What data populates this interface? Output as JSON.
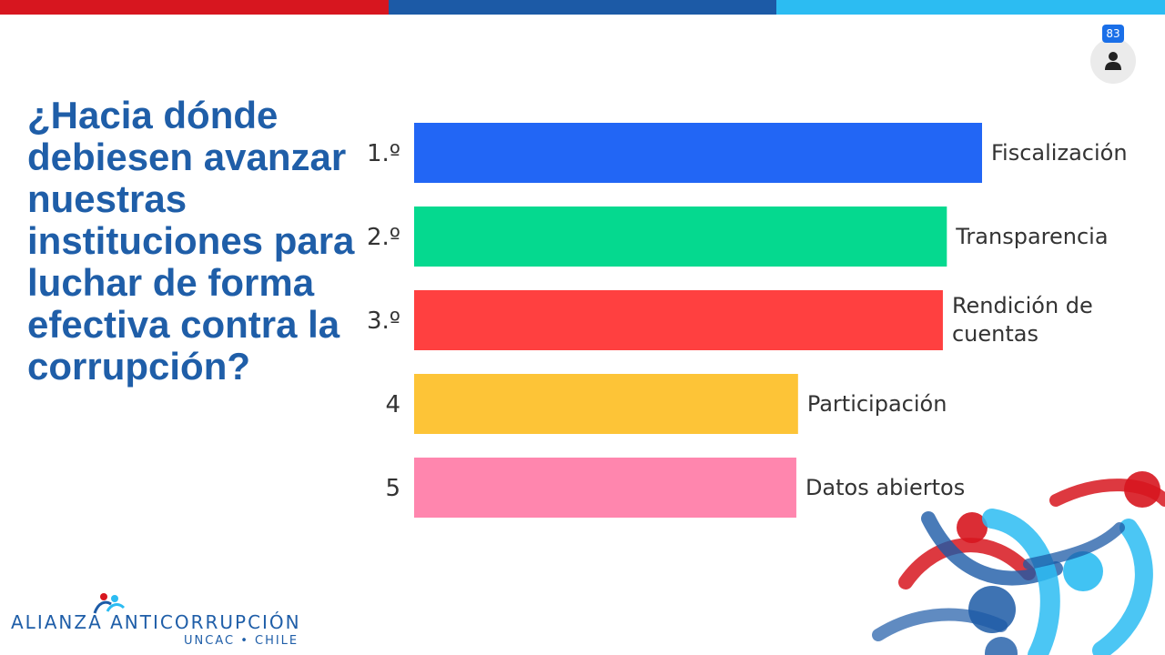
{
  "question": "¿Hacia dónde debiesen avanzar nuestras instituciones para luchar de forma efectiva contra la corrupción?",
  "participants": {
    "count": "83",
    "icon": "person-icon"
  },
  "logo": {
    "main": "ALIANZA ANTICORRUPCIÓN",
    "sub": "UNCAC • CHILE"
  },
  "colors": {
    "top_bar": [
      "#d7161f",
      "#1c5aa6",
      "#2cbcf2"
    ],
    "heading": "#1f5ea8"
  },
  "chart_data": {
    "type": "bar",
    "orientation": "horizontal",
    "title": "",
    "ranks": [
      "1.º",
      "2.º",
      "3.º",
      "4",
      "5"
    ],
    "categories": [
      "Fiscalización",
      "Transparencia",
      "Rendición de cuentas",
      "Participación",
      "Datos abiertos"
    ],
    "values": [
      100,
      93.8,
      93.1,
      67.6,
      67.3
    ],
    "xlim": [
      0,
      100
    ],
    "colors": [
      "#2266f5",
      "#05d98f",
      "#ff4040",
      "#fdc437",
      "#ff86ae"
    ],
    "grid": false,
    "legend": "none"
  }
}
